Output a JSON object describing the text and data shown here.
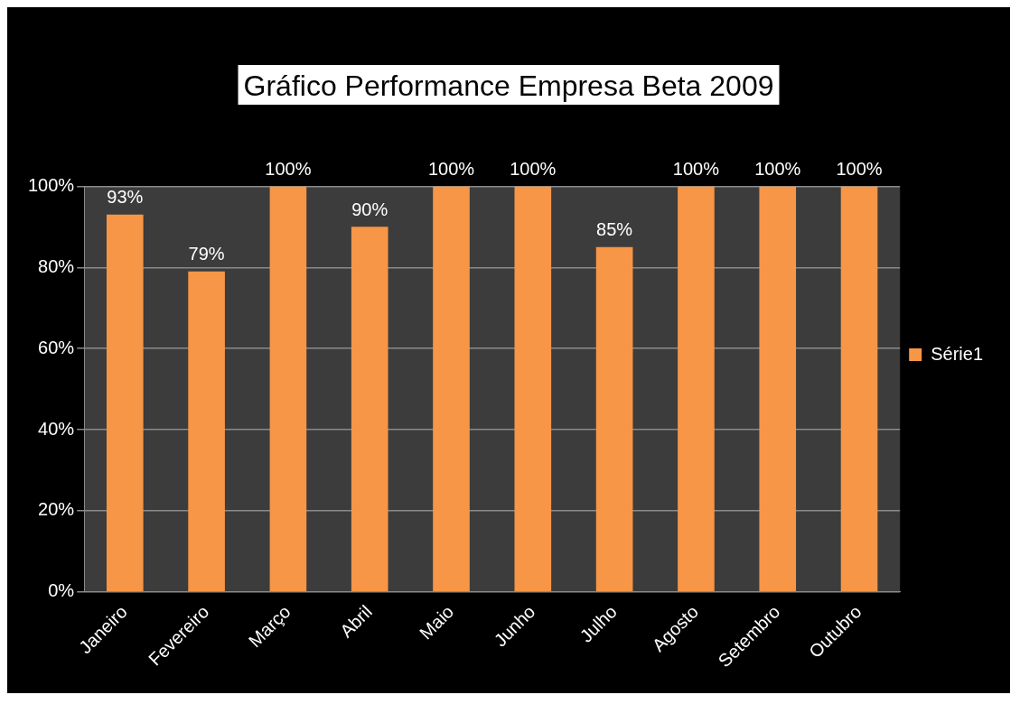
{
  "chart_data": {
    "type": "bar",
    "title": "Gráfico Performance Empresa Beta 2009",
    "categories": [
      "Janeiro",
      "Fevereiro",
      "Março",
      "Abril",
      "Maio",
      "Junho",
      "Julho",
      "Agosto",
      "Setembro",
      "Outubro"
    ],
    "series": [
      {
        "name": "Série1",
        "color": "#f79646",
        "values": [
          93,
          79,
          100,
          90,
          100,
          100,
          85,
          100,
          100,
          100
        ],
        "value_labels": [
          "93%",
          "79%",
          "100%",
          "90%",
          "100%",
          "100%",
          "85%",
          "100%",
          "100%",
          "100%"
        ]
      }
    ],
    "ylim": [
      0,
      100
    ],
    "yticks": [
      {
        "value": 0,
        "label": "0%"
      },
      {
        "value": 20,
        "label": "20%"
      },
      {
        "value": 40,
        "label": "40%"
      },
      {
        "value": 60,
        "label": "60%"
      },
      {
        "value": 80,
        "label": "80%"
      },
      {
        "value": 100,
        "label": "100%"
      }
    ],
    "grid": "y",
    "legend": "right"
  }
}
